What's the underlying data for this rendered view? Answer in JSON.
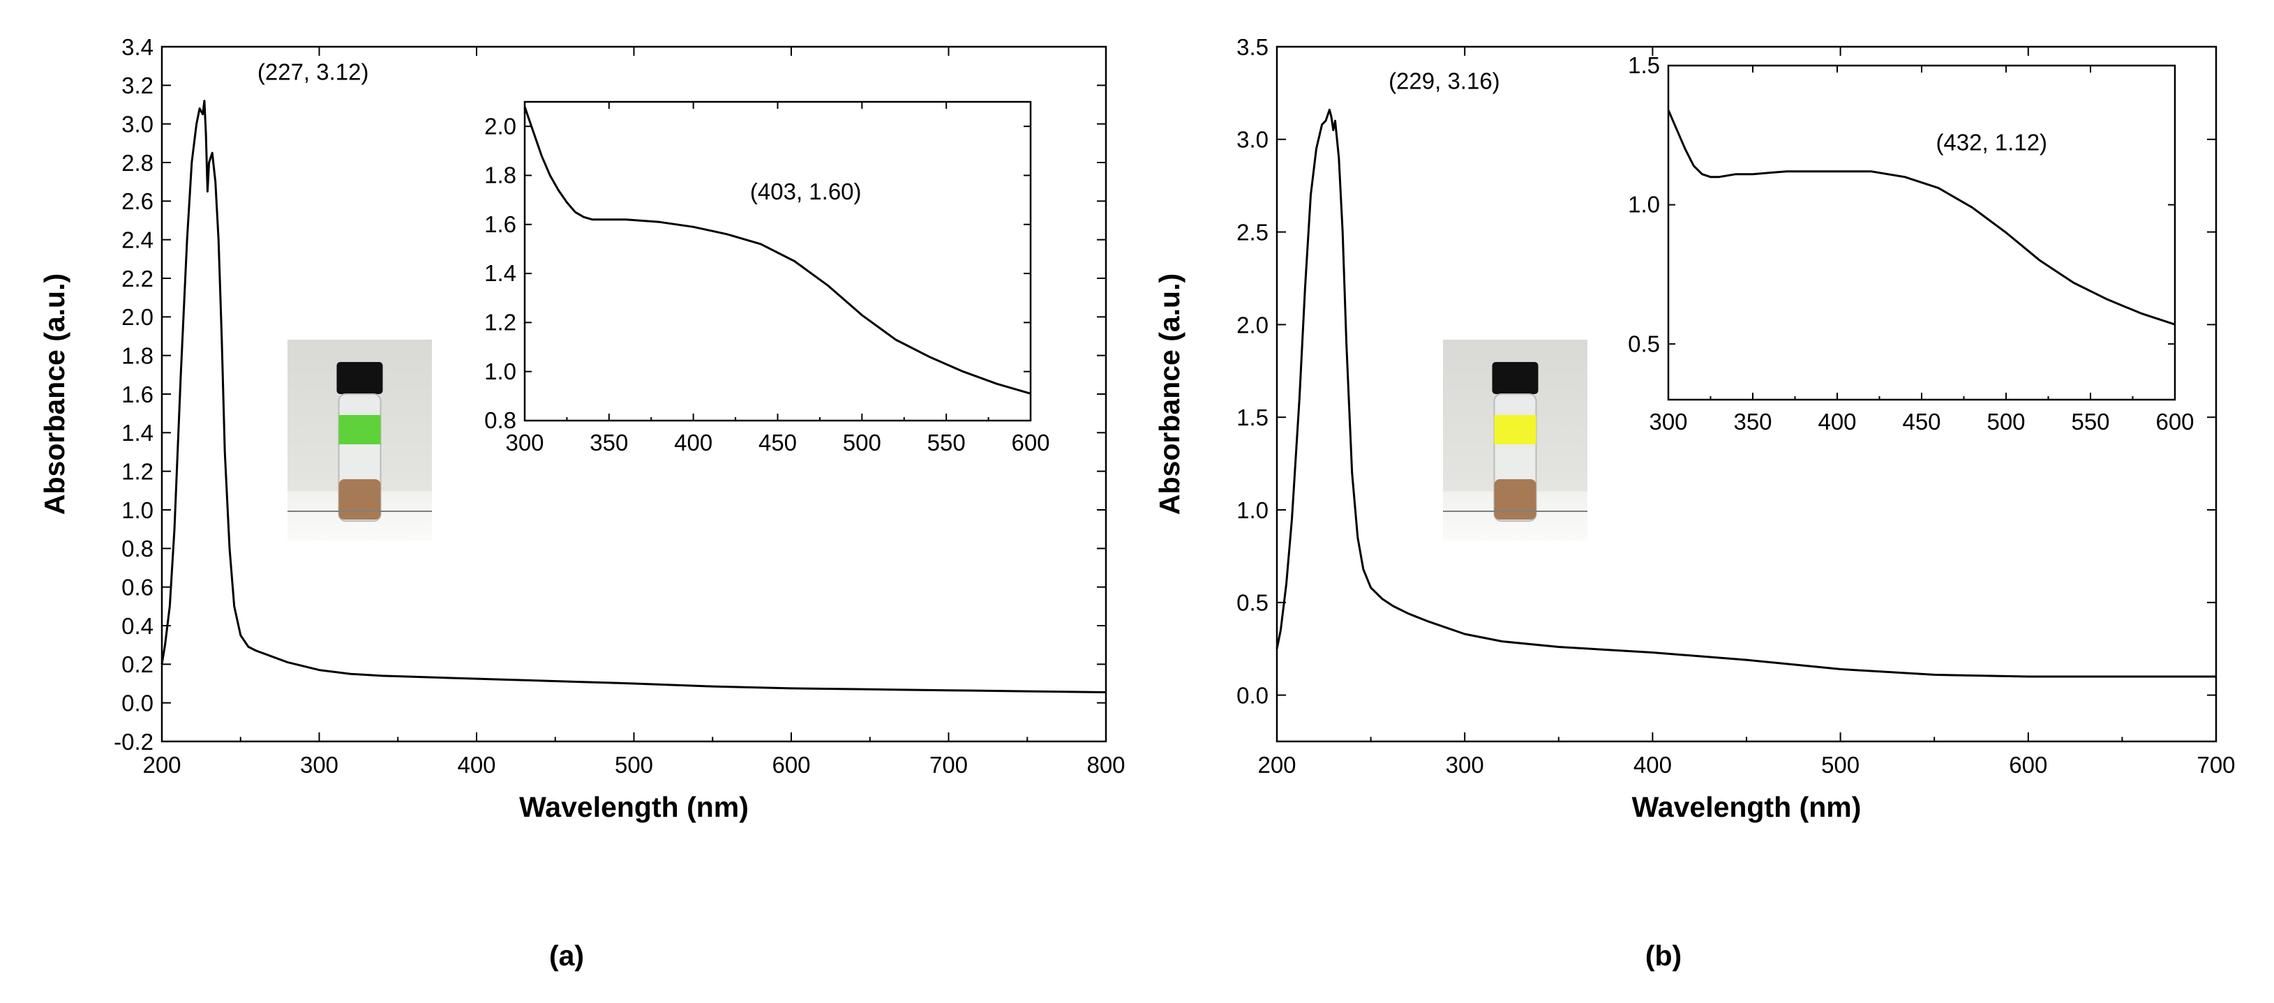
{
  "chart_data": [
    {
      "type": "line",
      "panel_label": "(a)",
      "xlabel": "Wavelength (nm)",
      "ylabel": "Absorbance (a.u.)",
      "xlim": [
        200,
        800
      ],
      "ylim": [
        -0.2,
        3.4
      ],
      "xticks": [
        200,
        300,
        400,
        500,
        600,
        700,
        800
      ],
      "yticks": [
        -0.2,
        0.0,
        0.2,
        0.4,
        0.6,
        0.8,
        1.0,
        1.2,
        1.4,
        1.6,
        1.8,
        2.0,
        2.2,
        2.4,
        2.6,
        2.8,
        3.0,
        3.2,
        3.4
      ],
      "ytick_decimals": 1,
      "series": [
        {
          "name": "spectrum",
          "x": [
            200,
            202,
            205,
            208,
            212,
            216,
            219,
            222,
            224,
            226,
            227,
            228,
            229,
            230,
            232,
            234,
            236,
            238,
            240,
            243,
            246,
            250,
            255,
            260,
            270,
            280,
            300,
            320,
            340,
            380,
            420,
            460,
            500,
            550,
            600,
            650,
            700,
            750,
            800
          ],
          "y": [
            0.2,
            0.3,
            0.5,
            0.9,
            1.7,
            2.4,
            2.8,
            3.0,
            3.08,
            3.05,
            3.12,
            2.95,
            2.65,
            2.8,
            2.85,
            2.7,
            2.4,
            1.9,
            1.3,
            0.8,
            0.5,
            0.35,
            0.29,
            0.27,
            0.24,
            0.21,
            0.17,
            0.15,
            0.14,
            0.13,
            0.12,
            0.11,
            0.1,
            0.085,
            0.075,
            0.07,
            0.065,
            0.06,
            0.055
          ]
        }
      ],
      "annotations": [
        {
          "text": "(227, 3.12)",
          "x": 227,
          "y": 3.12
        }
      ],
      "inset": {
        "xlim": [
          300,
          600
        ],
        "ylim": [
          0.8,
          2.1
        ],
        "xticks": [
          300,
          350,
          400,
          450,
          500,
          550,
          600
        ],
        "yticks": [
          0.8,
          1.0,
          1.2,
          1.4,
          1.6,
          1.8,
          2.0
        ],
        "ytick_decimals": 1,
        "series": [
          {
            "name": "inset-spectrum",
            "x": [
              300,
              305,
              310,
              315,
              320,
              325,
              330,
              335,
              340,
              350,
              360,
              380,
              400,
              420,
              440,
              460,
              480,
              500,
              520,
              540,
              560,
              580,
              600
            ],
            "y": [
              2.08,
              1.98,
              1.88,
              1.8,
              1.74,
              1.69,
              1.65,
              1.63,
              1.62,
              1.62,
              1.62,
              1.61,
              1.59,
              1.56,
              1.52,
              1.45,
              1.35,
              1.23,
              1.13,
              1.06,
              1.0,
              0.95,
              0.91
            ]
          }
        ],
        "annotations": [
          {
            "text": "(403, 1.60)",
            "x": 403,
            "y": 1.6
          }
        ]
      },
      "photo": {
        "description_icon": "vial-photo-icon",
        "label_color": "#5fd13a",
        "liquid_color": "#a77a56"
      }
    },
    {
      "type": "line",
      "panel_label": "(b)",
      "xlabel": "Wavelength (nm)",
      "ylabel": "Absorbance (a.u.)",
      "xlim": [
        200,
        700
      ],
      "ylim": [
        -0.25,
        3.5
      ],
      "xticks": [
        200,
        300,
        400,
        500,
        600,
        700
      ],
      "yticks": [
        0.0,
        0.5,
        1.0,
        1.5,
        2.0,
        2.5,
        3.0,
        3.5
      ],
      "ytick_decimals": 1,
      "series": [
        {
          "name": "spectrum",
          "x": [
            200,
            202,
            205,
            208,
            212,
            215,
            218,
            221,
            224,
            226,
            228,
            229,
            230,
            231,
            233,
            235,
            237,
            240,
            243,
            246,
            250,
            256,
            262,
            270,
            280,
            300,
            320,
            350,
            400,
            450,
            500,
            550,
            600,
            650,
            700
          ],
          "y": [
            0.25,
            0.35,
            0.6,
            0.95,
            1.6,
            2.2,
            2.7,
            2.95,
            3.08,
            3.1,
            3.16,
            3.12,
            3.05,
            3.1,
            2.9,
            2.5,
            1.9,
            1.2,
            0.85,
            0.68,
            0.58,
            0.52,
            0.48,
            0.44,
            0.4,
            0.33,
            0.29,
            0.26,
            0.23,
            0.19,
            0.14,
            0.11,
            0.1,
            0.1,
            0.1
          ]
        }
      ],
      "annotations": [
        {
          "text": "(229, 3.16)",
          "x": 229,
          "y": 3.16
        }
      ],
      "inset": {
        "xlim": [
          300,
          600
        ],
        "ylim": [
          0.3,
          1.5
        ],
        "xticks": [
          300,
          350,
          400,
          450,
          500,
          550,
          600
        ],
        "yticks": [
          0.5,
          1.0,
          1.5
        ],
        "ytick_decimals": 1,
        "series": [
          {
            "name": "inset-spectrum",
            "x": [
              300,
              305,
              310,
              315,
              320,
              325,
              330,
              340,
              350,
              370,
              400,
              420,
              440,
              460,
              480,
              500,
              520,
              540,
              560,
              580,
              600
            ],
            "y": [
              1.34,
              1.27,
              1.2,
              1.14,
              1.11,
              1.1,
              1.1,
              1.11,
              1.11,
              1.12,
              1.12,
              1.12,
              1.1,
              1.06,
              0.99,
              0.9,
              0.8,
              0.72,
              0.66,
              0.61,
              0.57
            ]
          }
        ],
        "annotations": [
          {
            "text": "(432, 1.12)",
            "x": 432,
            "y": 1.12
          }
        ]
      },
      "photo": {
        "description_icon": "vial-photo-icon",
        "label_color": "#f3f52d",
        "liquid_color": "#a77a56"
      }
    }
  ]
}
